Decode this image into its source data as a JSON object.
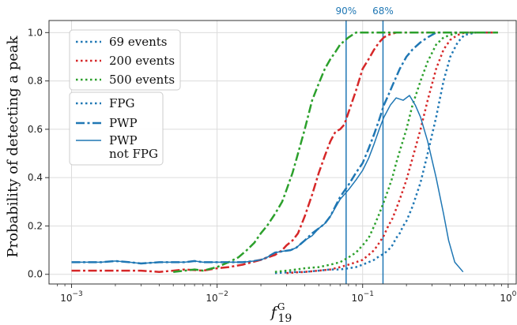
{
  "chart_data": {
    "type": "line",
    "title": "",
    "xlabel_main": "f",
    "xlabel_sup": "G",
    "xlabel_sub": "19",
    "ylabel": "Probability of detecting a peak",
    "xscale": "log",
    "xlim": [
      0.0007,
      1.15
    ],
    "ylim": [
      -0.04,
      1.05
    ],
    "grid": true,
    "xticks": [
      0.001,
      0.01,
      0.1,
      1
    ],
    "xtick_labels": [
      {
        "base": "10",
        "exp": "−3"
      },
      {
        "base": "10",
        "exp": "−2"
      },
      {
        "base": "10",
        "exp": "−1"
      },
      {
        "base": "10",
        "exp": "0"
      }
    ],
    "yticks": [
      0.0,
      0.2,
      0.4,
      0.6,
      0.8,
      1.0
    ],
    "ytick_labels": [
      "0.0",
      "0.2",
      "0.4",
      "0.6",
      "0.8",
      "1.0"
    ],
    "legend_placement": "upper-left",
    "legend": {
      "group1": [
        {
          "label": "69 events",
          "color": "#1f77b4",
          "style": "dotted"
        },
        {
          "label": "200 events",
          "color": "#d62728",
          "style": "dotted"
        },
        {
          "label": "500 events",
          "color": "#2ca02c",
          "style": "dotted"
        }
      ],
      "group2": [
        {
          "label": "FPG",
          "color": "#1f77b4",
          "style": "dotted"
        },
        {
          "label": "PWP",
          "color": "#1f77b4",
          "style": "dashdot"
        },
        {
          "label": "PWP",
          "label2": "not FPG",
          "color": "#1f77b4",
          "style": "solid"
        }
      ]
    },
    "vlines": [
      {
        "x": 0.077,
        "label": "90%",
        "color": "#1f77b4"
      },
      {
        "x": 0.138,
        "label": "68%",
        "color": "#1f77b4"
      }
    ],
    "series": [
      {
        "color": "#1f77b4",
        "style": "dotted",
        "points": [
          [
            0.025,
            0.005
          ],
          [
            0.03,
            0.008
          ],
          [
            0.035,
            0.01
          ],
          [
            0.04,
            0.01
          ],
          [
            0.05,
            0.015
          ],
          [
            0.06,
            0.02
          ],
          [
            0.07,
            0.02
          ],
          [
            0.08,
            0.025
          ],
          [
            0.09,
            0.03
          ],
          [
            0.1,
            0.04
          ],
          [
            0.11,
            0.05
          ],
          [
            0.12,
            0.06
          ],
          [
            0.13,
            0.075
          ],
          [
            0.14,
            0.085
          ],
          [
            0.15,
            0.1
          ],
          [
            0.16,
            0.12
          ],
          [
            0.17,
            0.15
          ],
          [
            0.18,
            0.17
          ],
          [
            0.19,
            0.2
          ],
          [
            0.2,
            0.22
          ],
          [
            0.22,
            0.28
          ],
          [
            0.25,
            0.38
          ],
          [
            0.28,
            0.5
          ],
          [
            0.32,
            0.65
          ],
          [
            0.36,
            0.8
          ],
          [
            0.4,
            0.9
          ],
          [
            0.45,
            0.96
          ],
          [
            0.5,
            0.99
          ],
          [
            0.6,
            1.0
          ],
          [
            0.85,
            1.0
          ]
        ]
      },
      {
        "color": "#d62728",
        "style": "dotted",
        "points": [
          [
            0.03,
            0.005
          ],
          [
            0.035,
            0.008
          ],
          [
            0.04,
            0.01
          ],
          [
            0.05,
            0.015
          ],
          [
            0.06,
            0.02
          ],
          [
            0.07,
            0.03
          ],
          [
            0.08,
            0.04
          ],
          [
            0.09,
            0.05
          ],
          [
            0.1,
            0.06
          ],
          [
            0.11,
            0.08
          ],
          [
            0.12,
            0.1
          ],
          [
            0.13,
            0.13
          ],
          [
            0.14,
            0.16
          ],
          [
            0.15,
            0.2
          ],
          [
            0.16,
            0.23
          ],
          [
            0.17,
            0.27
          ],
          [
            0.18,
            0.31
          ],
          [
            0.2,
            0.39
          ],
          [
            0.22,
            0.48
          ],
          [
            0.25,
            0.6
          ],
          [
            0.28,
            0.72
          ],
          [
            0.32,
            0.85
          ],
          [
            0.36,
            0.93
          ],
          [
            0.4,
            0.97
          ],
          [
            0.45,
            0.99
          ],
          [
            0.5,
            1.0
          ],
          [
            0.6,
            1.0
          ],
          [
            0.85,
            1.0
          ]
        ]
      },
      {
        "color": "#2ca02c",
        "style": "dotted",
        "points": [
          [
            0.025,
            0.01
          ],
          [
            0.03,
            0.015
          ],
          [
            0.035,
            0.02
          ],
          [
            0.04,
            0.025
          ],
          [
            0.05,
            0.03
          ],
          [
            0.06,
            0.04
          ],
          [
            0.07,
            0.05
          ],
          [
            0.08,
            0.07
          ],
          [
            0.09,
            0.09
          ],
          [
            0.1,
            0.12
          ],
          [
            0.11,
            0.15
          ],
          [
            0.12,
            0.2
          ],
          [
            0.13,
            0.25
          ],
          [
            0.14,
            0.3
          ],
          [
            0.15,
            0.35
          ],
          [
            0.16,
            0.4
          ],
          [
            0.17,
            0.46
          ],
          [
            0.18,
            0.51
          ],
          [
            0.2,
            0.6
          ],
          [
            0.22,
            0.7
          ],
          [
            0.25,
            0.8
          ],
          [
            0.28,
            0.88
          ],
          [
            0.32,
            0.95
          ],
          [
            0.36,
            0.98
          ],
          [
            0.4,
            0.99
          ],
          [
            0.45,
            1.0
          ],
          [
            0.6,
            1.0
          ],
          [
            0.85,
            1.0
          ]
        ]
      },
      {
        "color": "#1f77b4",
        "style": "dashdot",
        "points": [
          [
            0.001,
            0.05
          ],
          [
            0.0013,
            0.05
          ],
          [
            0.0016,
            0.05
          ],
          [
            0.002,
            0.055
          ],
          [
            0.0025,
            0.05
          ],
          [
            0.003,
            0.045
          ],
          [
            0.004,
            0.05
          ],
          [
            0.005,
            0.05
          ],
          [
            0.006,
            0.05
          ],
          [
            0.007,
            0.055
          ],
          [
            0.008,
            0.05
          ],
          [
            0.01,
            0.05
          ],
          [
            0.012,
            0.05
          ],
          [
            0.015,
            0.05
          ],
          [
            0.018,
            0.055
          ],
          [
            0.02,
            0.06
          ],
          [
            0.022,
            0.07
          ],
          [
            0.025,
            0.09
          ],
          [
            0.028,
            0.095
          ],
          [
            0.032,
            0.1
          ],
          [
            0.035,
            0.11
          ],
          [
            0.04,
            0.14
          ],
          [
            0.045,
            0.17
          ],
          [
            0.05,
            0.19
          ],
          [
            0.055,
            0.21
          ],
          [
            0.06,
            0.24
          ],
          [
            0.07,
            0.32
          ],
          [
            0.08,
            0.37
          ],
          [
            0.09,
            0.42
          ],
          [
            0.1,
            0.46
          ],
          [
            0.11,
            0.52
          ],
          [
            0.12,
            0.58
          ],
          [
            0.13,
            0.64
          ],
          [
            0.14,
            0.7
          ],
          [
            0.15,
            0.74
          ],
          [
            0.16,
            0.78
          ],
          [
            0.18,
            0.85
          ],
          [
            0.2,
            0.9
          ],
          [
            0.22,
            0.93
          ],
          [
            0.25,
            0.96
          ],
          [
            0.28,
            0.98
          ],
          [
            0.32,
            1.0
          ],
          [
            0.4,
            1.0
          ],
          [
            0.6,
            1.0
          ],
          [
            0.85,
            1.0
          ]
        ]
      },
      {
        "color": "#d62728",
        "style": "dashdot",
        "points": [
          [
            0.001,
            0.015
          ],
          [
            0.0015,
            0.015
          ],
          [
            0.002,
            0.015
          ],
          [
            0.003,
            0.015
          ],
          [
            0.004,
            0.01
          ],
          [
            0.005,
            0.015
          ],
          [
            0.006,
            0.02
          ],
          [
            0.008,
            0.015
          ],
          [
            0.01,
            0.025
          ],
          [
            0.012,
            0.03
          ],
          [
            0.015,
            0.04
          ],
          [
            0.02,
            0.06
          ],
          [
            0.025,
            0.08
          ],
          [
            0.028,
            0.1
          ],
          [
            0.03,
            0.12
          ],
          [
            0.033,
            0.14
          ],
          [
            0.036,
            0.17
          ],
          [
            0.04,
            0.24
          ],
          [
            0.045,
            0.33
          ],
          [
            0.05,
            0.42
          ],
          [
            0.055,
            0.49
          ],
          [
            0.06,
            0.55
          ],
          [
            0.065,
            0.59
          ],
          [
            0.07,
            0.6
          ],
          [
            0.075,
            0.62
          ],
          [
            0.08,
            0.67
          ],
          [
            0.09,
            0.76
          ],
          [
            0.1,
            0.85
          ],
          [
            0.11,
            0.89
          ],
          [
            0.12,
            0.93
          ],
          [
            0.13,
            0.96
          ],
          [
            0.14,
            0.98
          ],
          [
            0.15,
            0.99
          ],
          [
            0.17,
            1.0
          ],
          [
            0.25,
            1.0
          ],
          [
            0.4,
            1.0
          ],
          [
            0.6,
            1.0
          ],
          [
            0.85,
            1.0
          ]
        ]
      },
      {
        "color": "#2ca02c",
        "style": "dashdot",
        "points": [
          [
            0.005,
            0.01
          ],
          [
            0.006,
            0.015
          ],
          [
            0.007,
            0.02
          ],
          [
            0.008,
            0.015
          ],
          [
            0.01,
            0.03
          ],
          [
            0.012,
            0.05
          ],
          [
            0.014,
            0.07
          ],
          [
            0.016,
            0.1
          ],
          [
            0.018,
            0.13
          ],
          [
            0.02,
            0.17
          ],
          [
            0.022,
            0.2
          ],
          [
            0.025,
            0.25
          ],
          [
            0.028,
            0.3
          ],
          [
            0.03,
            0.35
          ],
          [
            0.033,
            0.42
          ],
          [
            0.036,
            0.5
          ],
          [
            0.04,
            0.6
          ],
          [
            0.045,
            0.72
          ],
          [
            0.05,
            0.79
          ],
          [
            0.055,
            0.85
          ],
          [
            0.06,
            0.89
          ],
          [
            0.065,
            0.92
          ],
          [
            0.07,
            0.95
          ],
          [
            0.08,
            0.98
          ],
          [
            0.09,
            1.0
          ],
          [
            0.1,
            1.0
          ],
          [
            0.15,
            1.0
          ],
          [
            0.25,
            1.0
          ],
          [
            0.4,
            1.0
          ],
          [
            0.6,
            1.0
          ],
          [
            0.85,
            1.0
          ]
        ]
      },
      {
        "color": "#1f77b4",
        "style": "solid",
        "points": [
          [
            0.001,
            0.05
          ],
          [
            0.0013,
            0.05
          ],
          [
            0.0016,
            0.05
          ],
          [
            0.002,
            0.055
          ],
          [
            0.0025,
            0.05
          ],
          [
            0.003,
            0.045
          ],
          [
            0.004,
            0.05
          ],
          [
            0.005,
            0.05
          ],
          [
            0.006,
            0.05
          ],
          [
            0.007,
            0.055
          ],
          [
            0.008,
            0.05
          ],
          [
            0.01,
            0.05
          ],
          [
            0.012,
            0.05
          ],
          [
            0.015,
            0.05
          ],
          [
            0.018,
            0.055
          ],
          [
            0.02,
            0.06
          ],
          [
            0.022,
            0.07
          ],
          [
            0.025,
            0.09
          ],
          [
            0.028,
            0.095
          ],
          [
            0.032,
            0.1
          ],
          [
            0.035,
            0.11
          ],
          [
            0.04,
            0.14
          ],
          [
            0.045,
            0.16
          ],
          [
            0.05,
            0.19
          ],
          [
            0.055,
            0.21
          ],
          [
            0.06,
            0.24
          ],
          [
            0.07,
            0.31
          ],
          [
            0.08,
            0.35
          ],
          [
            0.09,
            0.39
          ],
          [
            0.1,
            0.43
          ],
          [
            0.11,
            0.48
          ],
          [
            0.12,
            0.54
          ],
          [
            0.13,
            0.6
          ],
          [
            0.14,
            0.65
          ],
          [
            0.155,
            0.7
          ],
          [
            0.17,
            0.73
          ],
          [
            0.19,
            0.72
          ],
          [
            0.21,
            0.74
          ],
          [
            0.23,
            0.7
          ],
          [
            0.25,
            0.65
          ],
          [
            0.28,
            0.55
          ],
          [
            0.32,
            0.4
          ],
          [
            0.36,
            0.25
          ],
          [
            0.39,
            0.14
          ],
          [
            0.43,
            0.05
          ],
          [
            0.49,
            0.01
          ]
        ]
      }
    ]
  }
}
